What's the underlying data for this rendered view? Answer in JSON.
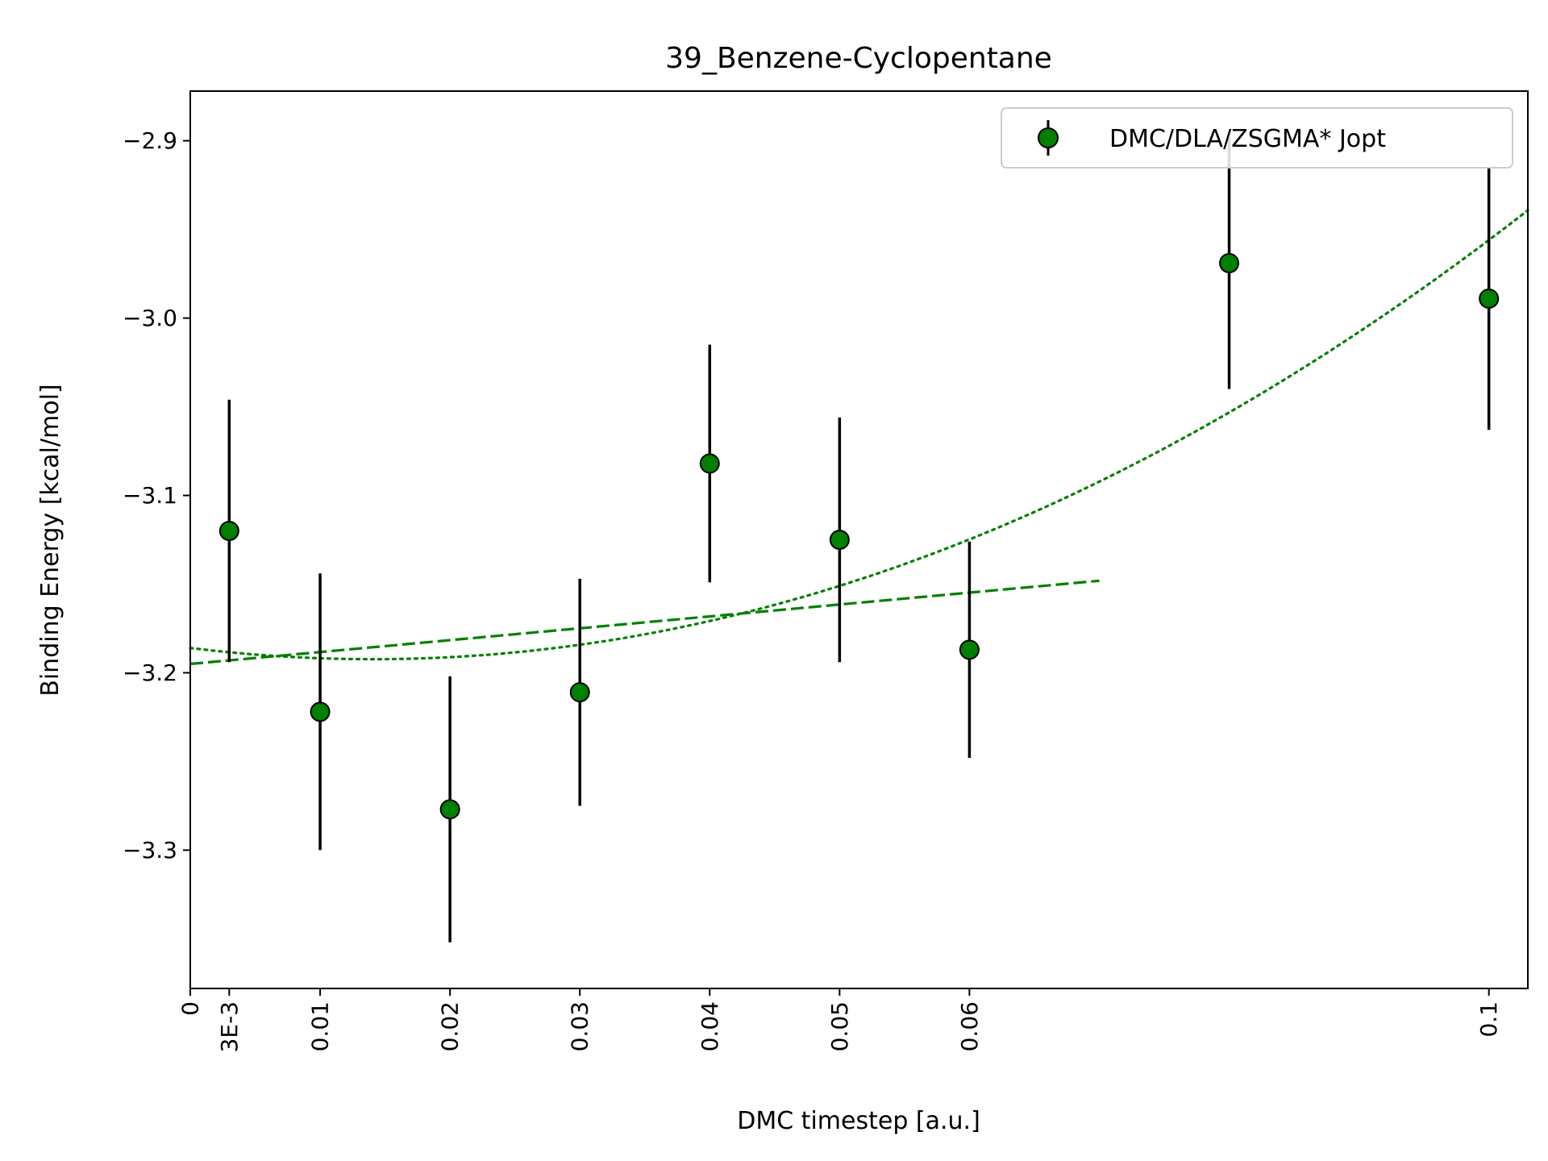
{
  "chart_data": {
    "type": "scatter",
    "title": "39_Benzene-Cyclopentane",
    "xlabel": "DMC timestep [a.u.]",
    "ylabel": "Binding Energy [kcal/mol]",
    "xlim": [
      0,
      0.103
    ],
    "ylim": [
      -3.378,
      -2.872
    ],
    "x_ticks": [
      {
        "value": 0,
        "label": "0"
      },
      {
        "value": 0.003,
        "label": "3E-3"
      },
      {
        "value": 0.01,
        "label": "0.01"
      },
      {
        "value": 0.02,
        "label": "0.02"
      },
      {
        "value": 0.03,
        "label": "0.03"
      },
      {
        "value": 0.04,
        "label": "0.04"
      },
      {
        "value": 0.05,
        "label": "0.05"
      },
      {
        "value": 0.06,
        "label": "0.06"
      },
      {
        "value": 0.1,
        "label": "0.1"
      }
    ],
    "y_ticks": [
      {
        "value": -2.9,
        "label": "−2.9"
      },
      {
        "value": -3.0,
        "label": "−3.0"
      },
      {
        "value": -3.1,
        "label": "−3.1"
      },
      {
        "value": -3.2,
        "label": "−3.2"
      },
      {
        "value": -3.3,
        "label": "−3.3"
      }
    ],
    "grid": false,
    "legend_position": "top-right",
    "series": [
      {
        "name": "DMC/DLA/ZSGMA* Jopt",
        "color": "#008000",
        "errorbar_color": "#000000",
        "points": [
          {
            "x": 0.003,
            "y": -3.12,
            "err": 0.074
          },
          {
            "x": 0.01,
            "y": -3.222,
            "err": 0.078
          },
          {
            "x": 0.02,
            "y": -3.277,
            "err": 0.075
          },
          {
            "x": 0.03,
            "y": -3.211,
            "err": 0.064
          },
          {
            "x": 0.04,
            "y": -3.082,
            "err": 0.067
          },
          {
            "x": 0.05,
            "y": -3.125,
            "err": 0.069
          },
          {
            "x": 0.06,
            "y": -3.187,
            "err": 0.061
          },
          {
            "x": 0.08,
            "y": -2.969,
            "err": 0.071
          },
          {
            "x": 0.1,
            "y": -2.989,
            "err": 0.074
          }
        ]
      }
    ],
    "fits": [
      {
        "style": "dashed",
        "color": "#008000",
        "kind": "linear",
        "x_range": [
          0,
          0.07
        ],
        "intercept": -3.195,
        "slope": 0.67
      },
      {
        "style": "dotted",
        "color": "#008000",
        "kind": "quadratic",
        "x_range": [
          0,
          0.103
        ],
        "c0": -3.186,
        "c1": -0.9,
        "c2": 32.0
      }
    ]
  }
}
